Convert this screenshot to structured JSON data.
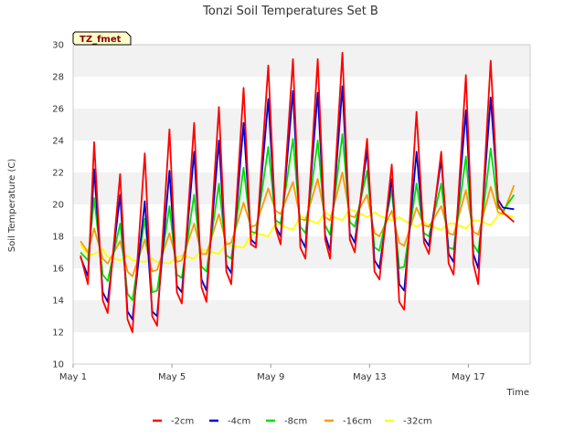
{
  "chart_data": {
    "type": "line",
    "title": "Tonzi Soil Temperatures Set B",
    "xlabel": "Time",
    "ylabel": "Soil Temperature (C)",
    "badge": "TZ_fmet",
    "x_unit": "day of May",
    "xlim": [
      1,
      19.5
    ],
    "ylim": [
      10,
      30
    ],
    "yticks": [
      10,
      12,
      14,
      16,
      18,
      20,
      22,
      24,
      26,
      28,
      30
    ],
    "xticks": [
      {
        "value": 1,
        "label": "May 1"
      },
      {
        "value": 5,
        "label": "May 5"
      },
      {
        "value": 9,
        "label": "May 9"
      },
      {
        "value": 13,
        "label": "May 13"
      },
      {
        "value": 17,
        "label": "May 17"
      }
    ],
    "grid": "horizontal bands",
    "legend_position": "bottom",
    "x": [
      1.3,
      1.6,
      1.85,
      2.2,
      2.4,
      2.9,
      3.2,
      3.4,
      3.9,
      4.2,
      4.4,
      4.9,
      5.2,
      5.4,
      5.9,
      6.2,
      6.4,
      6.9,
      7.2,
      7.4,
      7.9,
      8.2,
      8.4,
      8.9,
      9.2,
      9.4,
      9.9,
      10.2,
      10.4,
      10.9,
      11.2,
      11.4,
      11.9,
      12.2,
      12.4,
      12.9,
      13.2,
      13.4,
      13.9,
      14.2,
      14.4,
      14.9,
      15.2,
      15.4,
      15.9,
      16.2,
      16.4,
      16.9,
      17.2,
      17.4,
      17.9,
      18.2,
      18.4,
      18.85
    ],
    "series": [
      {
        "name": "-2cm",
        "color": "#ff0000",
        "values": [
          16.8,
          15.0,
          23.9,
          14.0,
          13.2,
          21.9,
          12.8,
          12.0,
          23.2,
          13.0,
          12.4,
          24.7,
          14.5,
          13.8,
          25.1,
          14.8,
          13.9,
          26.1,
          15.8,
          15.0,
          27.3,
          17.5,
          17.3,
          28.7,
          18.5,
          17.5,
          29.1,
          17.3,
          16.6,
          29.1,
          17.8,
          16.6,
          29.5,
          17.8,
          17.0,
          24.1,
          15.8,
          15.3,
          22.5,
          13.9,
          13.4,
          25.8,
          17.6,
          16.9,
          23.3,
          16.3,
          15.6,
          28.1,
          16.3,
          15.0,
          29.0,
          20.0,
          19.5,
          18.9
        ]
      },
      {
        "name": "-4cm",
        "color": "#0000cc",
        "values": [
          16.7,
          15.5,
          22.2,
          14.5,
          13.9,
          20.6,
          13.3,
          12.8,
          20.2,
          13.3,
          13.0,
          22.1,
          14.9,
          14.5,
          23.3,
          15.3,
          14.6,
          24.0,
          16.2,
          15.7,
          25.1,
          17.8,
          17.5,
          26.6,
          18.6,
          18.0,
          27.1,
          17.9,
          17.3,
          27.0,
          18.1,
          17.1,
          27.4,
          18.2,
          17.6,
          23.4,
          16.5,
          16.0,
          21.6,
          15.0,
          14.6,
          23.3,
          17.9,
          17.4,
          22.8,
          16.9,
          16.4,
          25.9,
          16.9,
          16.0,
          26.7,
          20.3,
          19.8,
          19.7
        ]
      },
      {
        "name": "-8cm",
        "color": "#00dd00",
        "values": [
          17.0,
          16.5,
          20.4,
          15.6,
          15.2,
          18.8,
          14.4,
          14.0,
          19.1,
          14.5,
          14.6,
          19.9,
          15.6,
          15.4,
          20.6,
          16.1,
          15.8,
          21.3,
          16.8,
          16.6,
          22.3,
          18.3,
          18.2,
          23.6,
          19.0,
          18.8,
          24.1,
          18.6,
          18.2,
          24.0,
          18.7,
          18.1,
          24.4,
          18.9,
          18.6,
          22.1,
          17.3,
          17.1,
          20.9,
          16.0,
          16.1,
          21.3,
          18.2,
          18.0,
          21.3,
          17.3,
          17.2,
          23.0,
          17.5,
          17.0,
          23.5,
          19.8,
          19.6,
          20.6
        ]
      },
      {
        "name": "-16cm",
        "color": "#ff9900",
        "values": [
          17.7,
          17.0,
          18.5,
          16.6,
          16.3,
          17.7,
          15.8,
          15.5,
          17.8,
          15.8,
          15.9,
          18.2,
          16.4,
          16.5,
          18.8,
          16.9,
          16.9,
          19.4,
          17.5,
          17.6,
          20.1,
          18.6,
          18.7,
          21.0,
          19.6,
          19.4,
          21.4,
          19.1,
          19.0,
          21.6,
          19.2,
          19.0,
          22.0,
          19.3,
          19.2,
          20.6,
          18.2,
          18.0,
          19.6,
          17.6,
          17.4,
          19.8,
          18.7,
          18.6,
          19.9,
          18.2,
          18.1,
          20.9,
          18.3,
          18.1,
          21.1,
          19.5,
          19.4,
          21.2
        ]
      },
      {
        "name": "-32cm",
        "color": "#ffff00",
        "values": [
          17.5,
          16.8,
          16.9,
          17.2,
          16.7,
          16.5,
          16.8,
          16.5,
          16.4,
          16.6,
          16.4,
          16.3,
          16.7,
          16.8,
          16.6,
          17.2,
          17.1,
          16.9,
          17.6,
          17.4,
          17.3,
          18.1,
          18.2,
          18.0,
          18.8,
          18.7,
          18.4,
          19.3,
          19.1,
          18.8,
          19.5,
          19.3,
          19.0,
          19.7,
          19.6,
          19.2,
          19.5,
          19.3,
          19.0,
          19.2,
          19.0,
          18.6,
          18.9,
          18.7,
          18.4,
          18.8,
          18.8,
          18.5,
          19.0,
          19.0,
          18.7,
          19.3,
          19.4,
          19.2
        ]
      }
    ]
  }
}
